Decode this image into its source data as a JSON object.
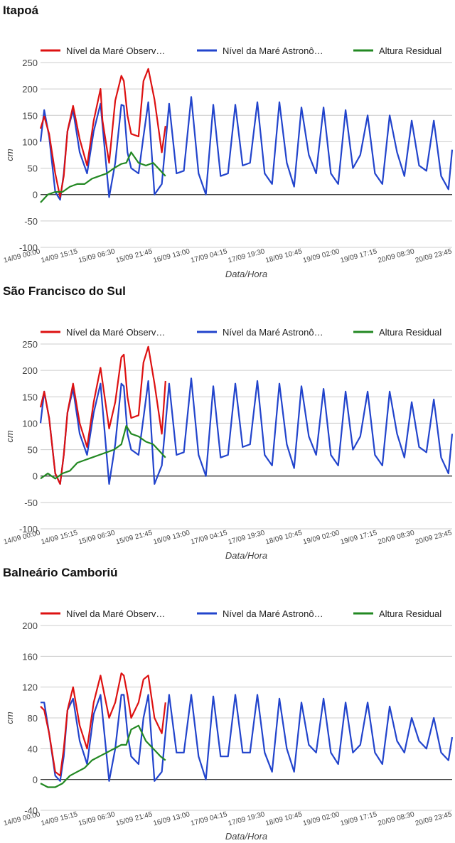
{
  "colors": {
    "observed": "#dd1111",
    "astronomical": "#2244cc",
    "residual": "#228822",
    "grid": "#cccccc",
    "zero": "#222222",
    "text": "#444444"
  },
  "legend": {
    "observed": "Nível da Maré Observ…",
    "astronomical": "Nível da Maré Astronô…",
    "residual": "Altura Residual"
  },
  "x_axis": {
    "label": "Data/Hora",
    "ticks": [
      "14/09 00:00",
      "14/09 15:15",
      "15/09 06:30",
      "15/09 21:45",
      "16/09 13:00",
      "17/09 04:15",
      "17/09 19:30",
      "18/09 10:45",
      "19/09 02:00",
      "19/09 17:15",
      "20/09 08:30",
      "20/09 23:45"
    ]
  },
  "y_axis_label": "cm",
  "panels": [
    {
      "title": "Itapoá",
      "chart_data": {
        "type": "line",
        "ylim": [
          -100,
          250
        ],
        "yticks": [
          -100,
          -50,
          0,
          50,
          100,
          150,
          200,
          250
        ],
        "xlim_hours": [
          0,
          168
        ],
        "series": [
          {
            "name": "Nível da Maré Observ…",
            "key": "observed",
            "x": [
              0,
              1.5,
              3.5,
              6,
              8,
              9.5,
              11,
              13.3,
              16,
              19,
              21.7,
              24.5,
              25.3,
              28,
              30.5,
              33,
              34,
              35.5,
              37,
              40,
              42,
              44,
              46.5,
              49.5,
              51
            ],
            "y": [
              125,
              148,
              115,
              40,
              -5,
              35,
              120,
              168,
              105,
              55,
              140,
              200,
              140,
              60,
              178,
              225,
              215,
              150,
              115,
              110,
              215,
              238,
              180,
              80,
              130
            ]
          },
          {
            "name": "Nível da Maré Astronô…",
            "key": "astronomical",
            "x": [
              0,
              1.5,
              3.5,
              6,
              8,
              9.5,
              11,
              13.3,
              16,
              19,
              21.7,
              24.5,
              28,
              30.5,
              33,
              34,
              35.5,
              37,
              40,
              42,
              44,
              46.5,
              49.5,
              52.5,
              55.5,
              58.5,
              61.5,
              64.5,
              67.5,
              70.5,
              73.5,
              76.5,
              79.5,
              82.5,
              85.5,
              88.5,
              91.5,
              94.5,
              97.5,
              100.5,
              103.5,
              106.5,
              109.5,
              112.5,
              115.5,
              118.5,
              121.5,
              124.5,
              127.5,
              130.5,
              133.5,
              136.5,
              139.5,
              142.5,
              145.5,
              148.5,
              151.5,
              154.5,
              157.5,
              160.5,
              163.5,
              166.5,
              168
            ],
            "y": [
              100,
              160,
              110,
              5,
              -10,
              40,
              120,
              160,
              80,
              40,
              120,
              172,
              -5,
              60,
              170,
              168,
              80,
              50,
              40,
              110,
              175,
              0,
              20,
              172,
              40,
              45,
              185,
              40,
              0,
              170,
              35,
              40,
              170,
              55,
              60,
              175,
              40,
              20,
              175,
              60,
              15,
              165,
              75,
              40,
              165,
              40,
              20,
              160,
              50,
              75,
              150,
              40,
              20,
              150,
              80,
              35,
              140,
              55,
              45,
              140,
              35,
              10,
              85
            ]
          },
          {
            "name": "Altura Residual",
            "key": "residual",
            "x": [
              0,
              3,
              6,
              9,
              12,
              15,
              18,
              21,
              24,
              27,
              30,
              33,
              35,
              37,
              40,
              43,
              46,
              49,
              51
            ],
            "y": [
              -15,
              0,
              5,
              5,
              15,
              20,
              20,
              30,
              35,
              40,
              50,
              58,
              60,
              80,
              60,
              55,
              60,
              45,
              35
            ]
          }
        ]
      }
    },
    {
      "title": "São Francisco do Sul",
      "chart_data": {
        "type": "line",
        "ylim": [
          -100,
          250
        ],
        "yticks": [
          -100,
          -50,
          0,
          50,
          100,
          150,
          200,
          250
        ],
        "xlim_hours": [
          0,
          168
        ],
        "series": [
          {
            "name": "Nível da Maré Observ…",
            "key": "observed",
            "x": [
              0,
              1.5,
              3.5,
              6,
              8,
              9.5,
              11,
              13.3,
              16,
              19,
              21.7,
              24.5,
              28,
              30.5,
              33,
              34,
              35.5,
              37,
              40,
              42,
              44,
              46.5,
              49.5,
              51
            ],
            "y": [
              130,
              160,
              110,
              5,
              -15,
              40,
              120,
              175,
              100,
              55,
              140,
              205,
              90,
              140,
              225,
              230,
              150,
              110,
              115,
              215,
              245,
              175,
              80,
              180
            ]
          },
          {
            "name": "Nível da Maré Astronô…",
            "key": "astronomical",
            "x": [
              0,
              1.5,
              3.5,
              6,
              8,
              9.5,
              11,
              13.3,
              16,
              19,
              21.7,
              24.5,
              28,
              30.5,
              33,
              34,
              35.5,
              37,
              40,
              42,
              44,
              46.5,
              49.5,
              52.5,
              55.5,
              58.5,
              61.5,
              64.5,
              67.5,
              70.5,
              73.5,
              76.5,
              79.5,
              82.5,
              85.5,
              88.5,
              91.5,
              94.5,
              97.5,
              100.5,
              103.5,
              106.5,
              109.5,
              112.5,
              115.5,
              118.5,
              121.5,
              124.5,
              127.5,
              130.5,
              133.5,
              136.5,
              139.5,
              142.5,
              145.5,
              148.5,
              151.5,
              154.5,
              157.5,
              160.5,
              163.5,
              166.5,
              168
            ],
            "y": [
              100,
              160,
              110,
              5,
              -15,
              40,
              120,
              165,
              80,
              40,
              120,
              175,
              -15,
              60,
              175,
              170,
              80,
              50,
              40,
              110,
              180,
              -15,
              20,
              175,
              40,
              45,
              185,
              40,
              0,
              170,
              35,
              40,
              175,
              55,
              60,
              180,
              40,
              20,
              175,
              60,
              15,
              170,
              75,
              40,
              165,
              40,
              20,
              160,
              50,
              75,
              160,
              40,
              20,
              160,
              80,
              35,
              140,
              55,
              45,
              145,
              35,
              5,
              80
            ]
          },
          {
            "name": "Altura Residual",
            "key": "residual",
            "x": [
              0,
              3,
              6,
              9,
              12,
              15,
              18,
              21,
              24,
              27,
              30,
              33,
              35,
              37,
              40,
              43,
              46,
              49,
              51
            ],
            "y": [
              -5,
              5,
              -5,
              5,
              10,
              25,
              30,
              35,
              40,
              45,
              50,
              60,
              95,
              80,
              75,
              65,
              60,
              45,
              35
            ]
          }
        ]
      }
    },
    {
      "title": "Balneário Camboriú",
      "chart_data": {
        "type": "line",
        "ylim": [
          -40,
          200
        ],
        "yticks": [
          -40,
          0,
          40,
          80,
          120,
          160,
          200
        ],
        "xlim_hours": [
          0,
          168
        ],
        "series": [
          {
            "name": "Nível da Maré Observ…",
            "key": "observed",
            "x": [
              0,
              1.5,
              3.5,
              6,
              8,
              9.5,
              11,
              13.3,
              16,
              19,
              21.7,
              24.5,
              28,
              30.5,
              33,
              34,
              35.5,
              37,
              40,
              42,
              44,
              46.5,
              49.5,
              51
            ],
            "y": [
              95,
              90,
              60,
              10,
              5,
              40,
              90,
              120,
              70,
              40,
              100,
              135,
              80,
              100,
              138,
              135,
              110,
              80,
              100,
              130,
              135,
              80,
              60,
              100
            ]
          },
          {
            "name": "Nível da Maré Astronô…",
            "key": "astronomical",
            "x": [
              0,
              1.5,
              3.5,
              6,
              8,
              9.5,
              11,
              13.3,
              16,
              19,
              21.7,
              24.5,
              28,
              30.5,
              33,
              34,
              35.5,
              37,
              40,
              42,
              44,
              46.5,
              49.5,
              52.5,
              55.5,
              58.5,
              61.5,
              64.5,
              67.5,
              70.5,
              73.5,
              76.5,
              79.5,
              82.5,
              85.5,
              88.5,
              91.5,
              94.5,
              97.5,
              100.5,
              103.5,
              106.5,
              109.5,
              112.5,
              115.5,
              118.5,
              121.5,
              124.5,
              127.5,
              130.5,
              133.5,
              136.5,
              139.5,
              142.5,
              145.5,
              148.5,
              151.5,
              154.5,
              157.5,
              160.5,
              163.5,
              166.5,
              168
            ],
            "y": [
              100,
              100,
              60,
              5,
              -2,
              30,
              90,
              105,
              50,
              20,
              85,
              110,
              -2,
              40,
              110,
              110,
              60,
              30,
              20,
              80,
              110,
              -2,
              10,
              110,
              35,
              35,
              110,
              30,
              0,
              108,
              30,
              30,
              110,
              35,
              35,
              110,
              35,
              10,
              105,
              40,
              10,
              100,
              45,
              35,
              105,
              35,
              20,
              100,
              35,
              45,
              100,
              35,
              20,
              95,
              50,
              35,
              80,
              50,
              40,
              80,
              35,
              25,
              55
            ]
          },
          {
            "name": "Altura Residual",
            "key": "residual",
            "x": [
              0,
              3,
              6,
              9,
              12,
              15,
              18,
              21,
              24,
              27,
              30,
              33,
              35,
              37,
              40,
              43,
              46,
              49,
              51
            ],
            "y": [
              -5,
              -10,
              -10,
              -5,
              5,
              10,
              15,
              25,
              30,
              35,
              40,
              45,
              45,
              65,
              70,
              50,
              40,
              30,
              25
            ]
          }
        ]
      }
    }
  ]
}
